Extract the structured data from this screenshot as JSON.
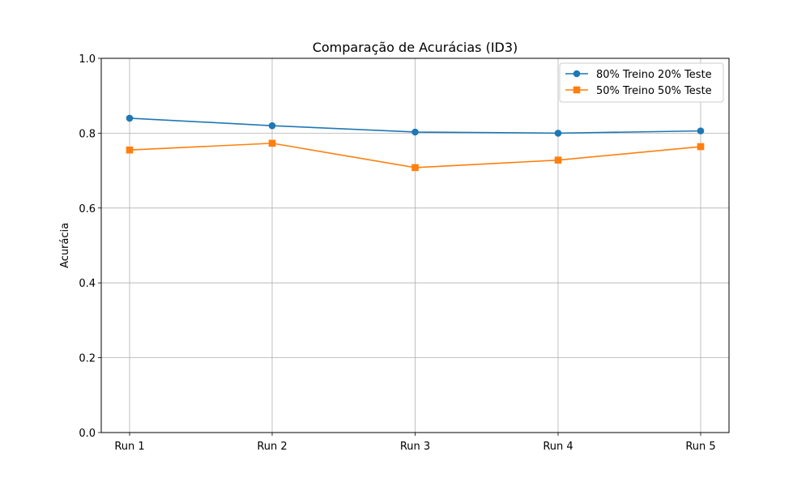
{
  "chart_data": {
    "type": "line",
    "title": "Comparação de Acurácias (ID3)",
    "xlabel": "",
    "ylabel": "Acurácia",
    "categories": [
      "Run 1",
      "Run 2",
      "Run 3",
      "Run 4",
      "Run 5"
    ],
    "ylim": [
      0.0,
      1.0
    ],
    "yticks": [
      "0.0",
      "0.2",
      "0.4",
      "0.6",
      "0.8",
      "1.0"
    ],
    "grid": true,
    "legend_position": "top-right",
    "series": [
      {
        "name": "80% Treino 20% Teste",
        "values": [
          0.84,
          0.82,
          0.803,
          0.8,
          0.806
        ],
        "color": "#1f77b4",
        "marker": "circle"
      },
      {
        "name": "50% Treino 50% Teste",
        "values": [
          0.755,
          0.773,
          0.708,
          0.728,
          0.764
        ],
        "color": "#ff7f0e",
        "marker": "square"
      }
    ]
  }
}
